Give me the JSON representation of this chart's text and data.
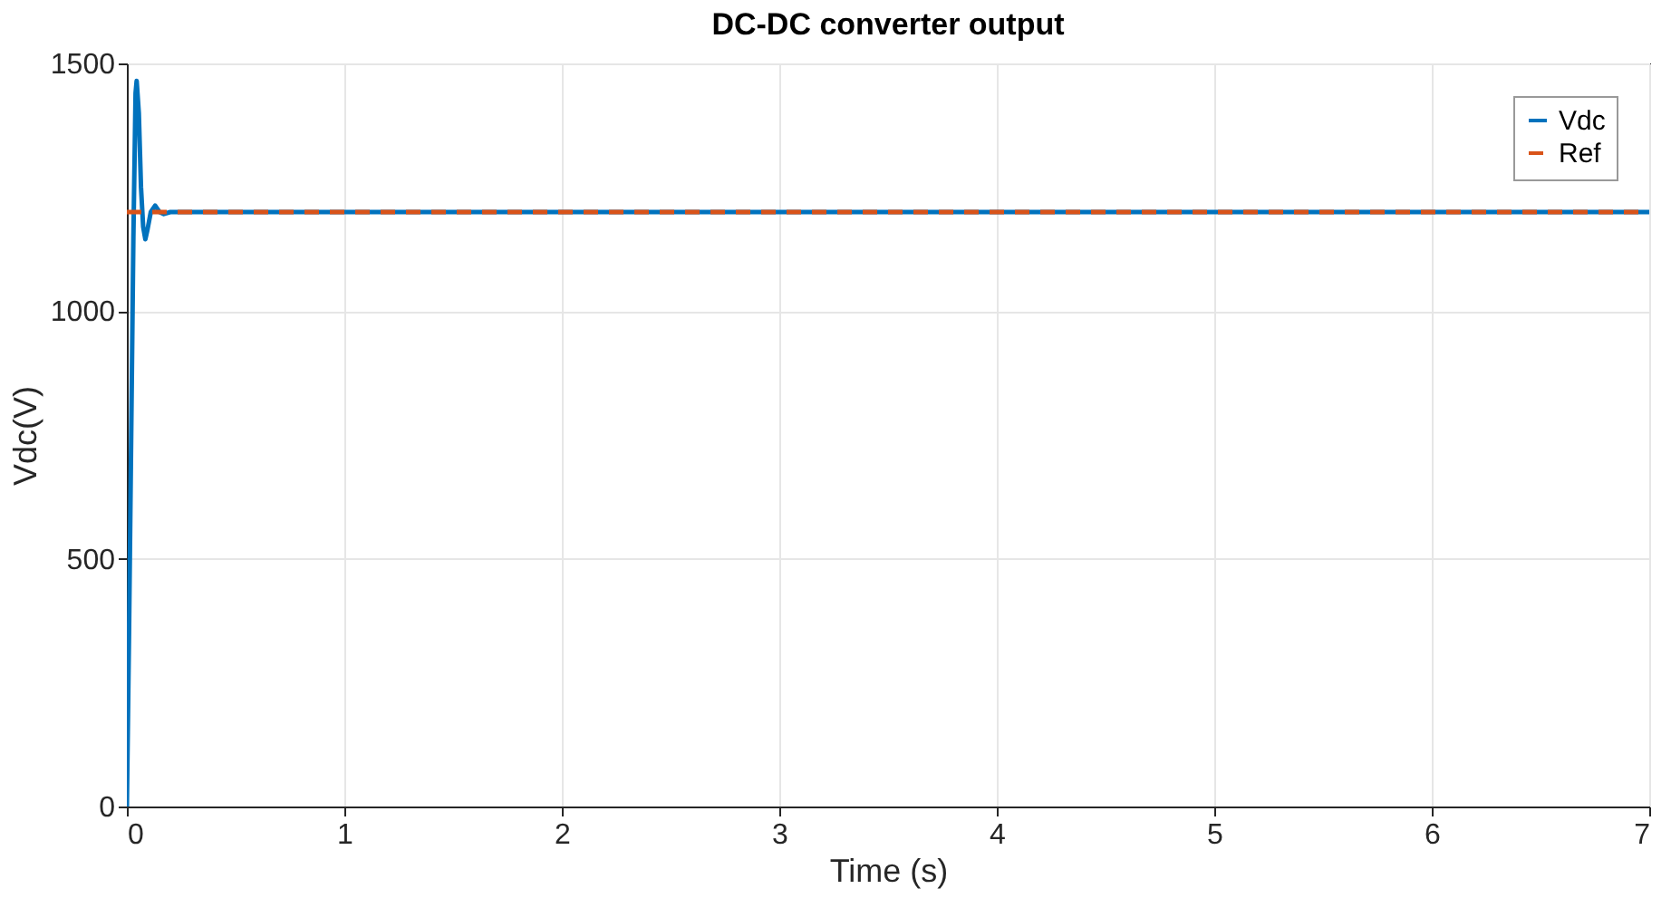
{
  "chart_data": {
    "type": "line",
    "title": "DC-DC converter output",
    "xlabel": "Time (s)",
    "ylabel": "Vdc(V)",
    "xlim": [
      0,
      7
    ],
    "xticks": [
      0,
      1,
      2,
      3,
      4,
      5,
      6,
      7
    ],
    "ylim": [
      0,
      1500
    ],
    "yticks": [
      0,
      500,
      1000,
      1500
    ],
    "grid": true,
    "legend": "top right",
    "series": [
      {
        "name": "Vdc",
        "color": "#0072bd",
        "line_style": "solid",
        "x": [
          0,
          0.01,
          0.02,
          0.03,
          0.04,
          0.045,
          0.055,
          0.065,
          0.075,
          0.085,
          0.095,
          0.11,
          0.13,
          0.15,
          0.17,
          0.2,
          7
        ],
        "values": [
          0,
          350,
          750,
          1150,
          1440,
          1465,
          1400,
          1250,
          1170,
          1145,
          1165,
          1200,
          1213,
          1200,
          1196,
          1200,
          1200
        ]
      },
      {
        "name": "Ref",
        "color": "#d95319",
        "line_style": "dashed",
        "x": [
          0,
          7
        ],
        "values": [
          1200,
          1200
        ]
      }
    ]
  }
}
